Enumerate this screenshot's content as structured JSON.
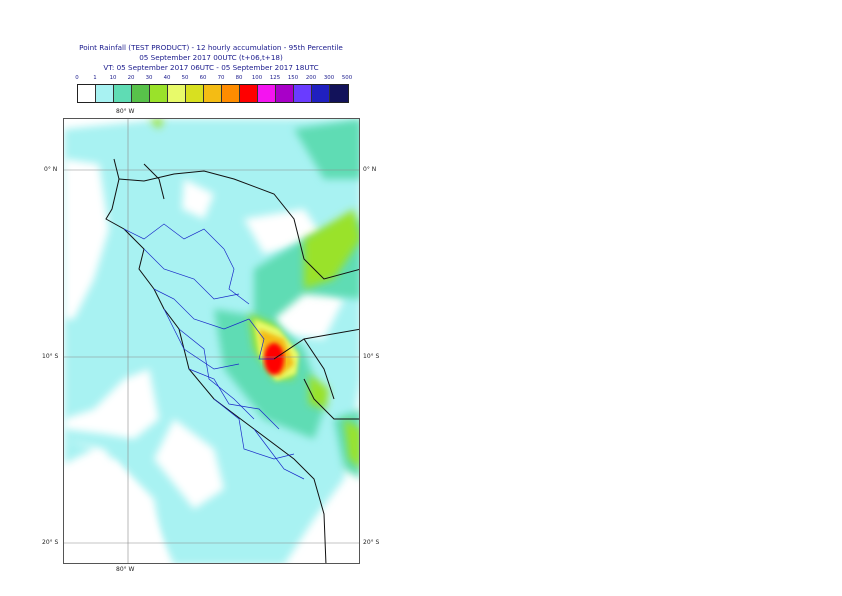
{
  "title": {
    "line1": "Point Rainfall (TEST PRODUCT) - 12 hourly accumulation - 95th Percentile",
    "line2": "05 September 2017 00UTC (t+06,t+18)",
    "line3": "VT: 05 September 2017 06UTC - 05 September 2017 18UTC"
  },
  "legend": {
    "ticks": [
      "0",
      "1",
      "10",
      "20",
      "30",
      "40",
      "50",
      "60",
      "70",
      "80",
      "100",
      "125",
      "150",
      "200",
      "300",
      "500"
    ],
    "colors": [
      "#ffffff",
      "#a8f2f2",
      "#5fdcb4",
      "#58c24a",
      "#9ae22a",
      "#e8fa6a",
      "#d8e020",
      "#f4bc14",
      "#ff8c00",
      "#ff0000",
      "#f414f0",
      "#a800c8",
      "#6a3cff",
      "#2020c0",
      "#12125a"
    ]
  },
  "map": {
    "lon_label_top": "80° W",
    "lon_label_bottom": "80° W",
    "lat_labels": [
      {
        "left": "0° N",
        "right": "0° N"
      },
      {
        "left": "10° S",
        "right": "10° S"
      },
      {
        "left": "20° S",
        "right": "20° S"
      }
    ]
  }
}
